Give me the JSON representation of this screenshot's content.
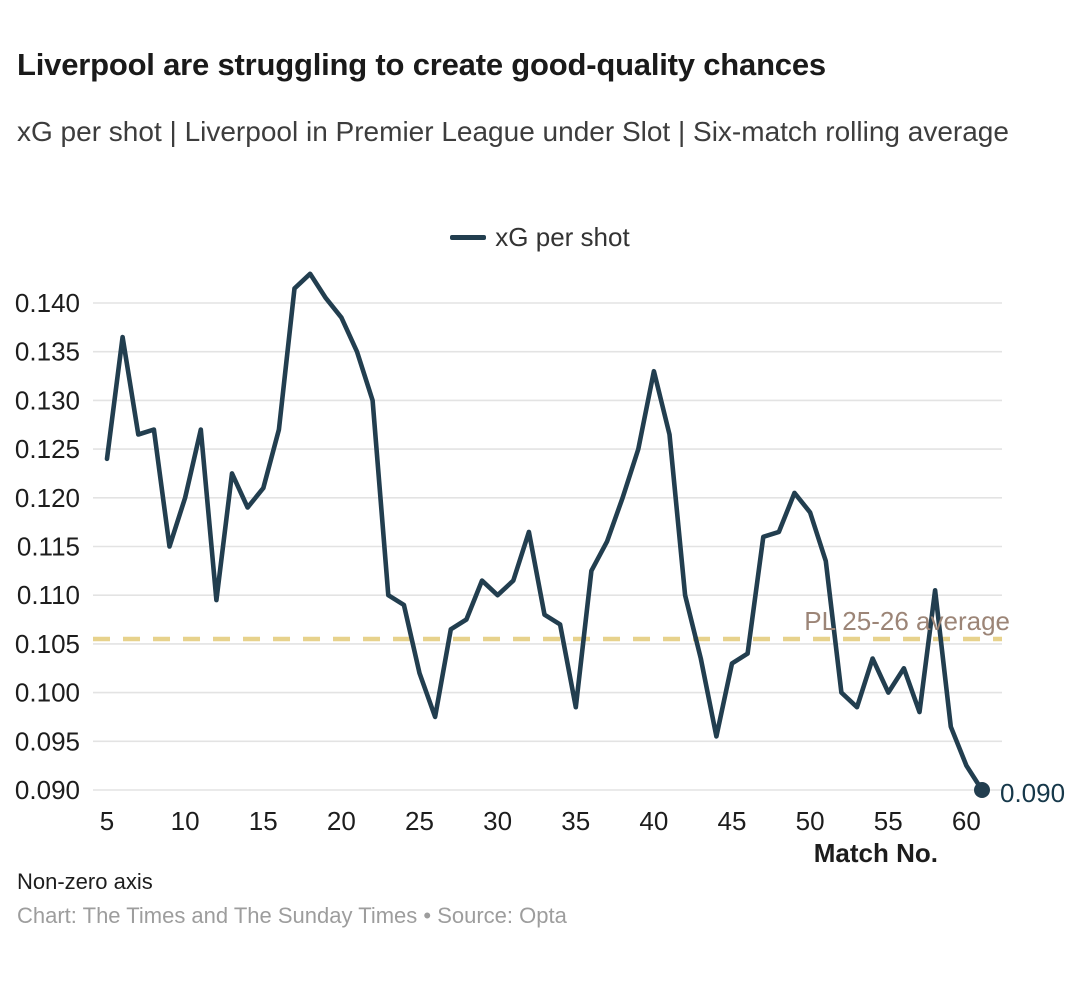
{
  "header": {
    "title": "Liverpool are struggling to create good-quality chances",
    "subtitle": "xG per shot | Liverpool in Premier League under Slot | Six-match rolling average"
  },
  "chart_data": {
    "type": "line",
    "title": "Liverpool are struggling to create good-quality chances",
    "xlabel": "Match No.",
    "ylabel": "xG per shot",
    "x": [
      5,
      6,
      7,
      8,
      9,
      10,
      11,
      12,
      13,
      14,
      15,
      16,
      17,
      18,
      19,
      20,
      21,
      22,
      23,
      24,
      25,
      26,
      27,
      28,
      29,
      30,
      31,
      32,
      33,
      34,
      35,
      36,
      37,
      38,
      39,
      40,
      41,
      42,
      43,
      44,
      45,
      46,
      47,
      48,
      49,
      50,
      51,
      52,
      53,
      54,
      55,
      56,
      57,
      58,
      59,
      60,
      61
    ],
    "series": [
      {
        "name": "xG per shot",
        "color": "#223e4f",
        "values": [
          0.124,
          0.1365,
          0.1265,
          0.127,
          0.115,
          0.12,
          0.127,
          0.1095,
          0.1225,
          0.119,
          0.121,
          0.127,
          0.1415,
          0.143,
          0.1405,
          0.1385,
          0.135,
          0.13,
          0.11,
          0.109,
          0.102,
          0.0975,
          0.1065,
          0.1075,
          0.1115,
          0.11,
          0.1115,
          0.1165,
          0.108,
          0.107,
          0.0985,
          0.1125,
          0.1155,
          0.12,
          0.125,
          0.133,
          0.1265,
          0.11,
          0.1035,
          0.0955,
          0.103,
          0.104,
          0.116,
          0.1165,
          0.1205,
          0.1185,
          0.1135,
          0.1,
          0.0985,
          0.1035,
          0.1,
          0.1025,
          0.098,
          0.1105,
          0.0965,
          0.0925,
          0.09
        ]
      }
    ],
    "x_ticks": [
      5,
      10,
      15,
      20,
      25,
      30,
      35,
      40,
      45,
      50,
      55,
      60
    ],
    "y_ticks": [
      "0.140",
      "0.135",
      "0.130",
      "0.125",
      "0.120",
      "0.115",
      "0.110",
      "0.105",
      "0.100",
      "0.095",
      "0.090"
    ],
    "xlim": [
      5,
      61
    ],
    "ylim": [
      0.09,
      0.1435
    ],
    "grid": true,
    "legend_position": "top-center",
    "reference_line": {
      "value": 0.1055,
      "label": "PL 25-26 average",
      "color": "#e7d28c",
      "style": "dashed"
    },
    "end_point_label": "0.090"
  },
  "footer": {
    "note": "Non-zero axis",
    "credit": "Chart: The Times and The Sunday Times • Source: Opta"
  },
  "colors": {
    "line": "#223e4f",
    "reference": "#e7d28c",
    "reference_label": "#9c8577",
    "grid": "#e3e3e3",
    "tick_text": "#1d1d1d",
    "end_label": "#16384a",
    "credit": "#9d9d9d"
  }
}
